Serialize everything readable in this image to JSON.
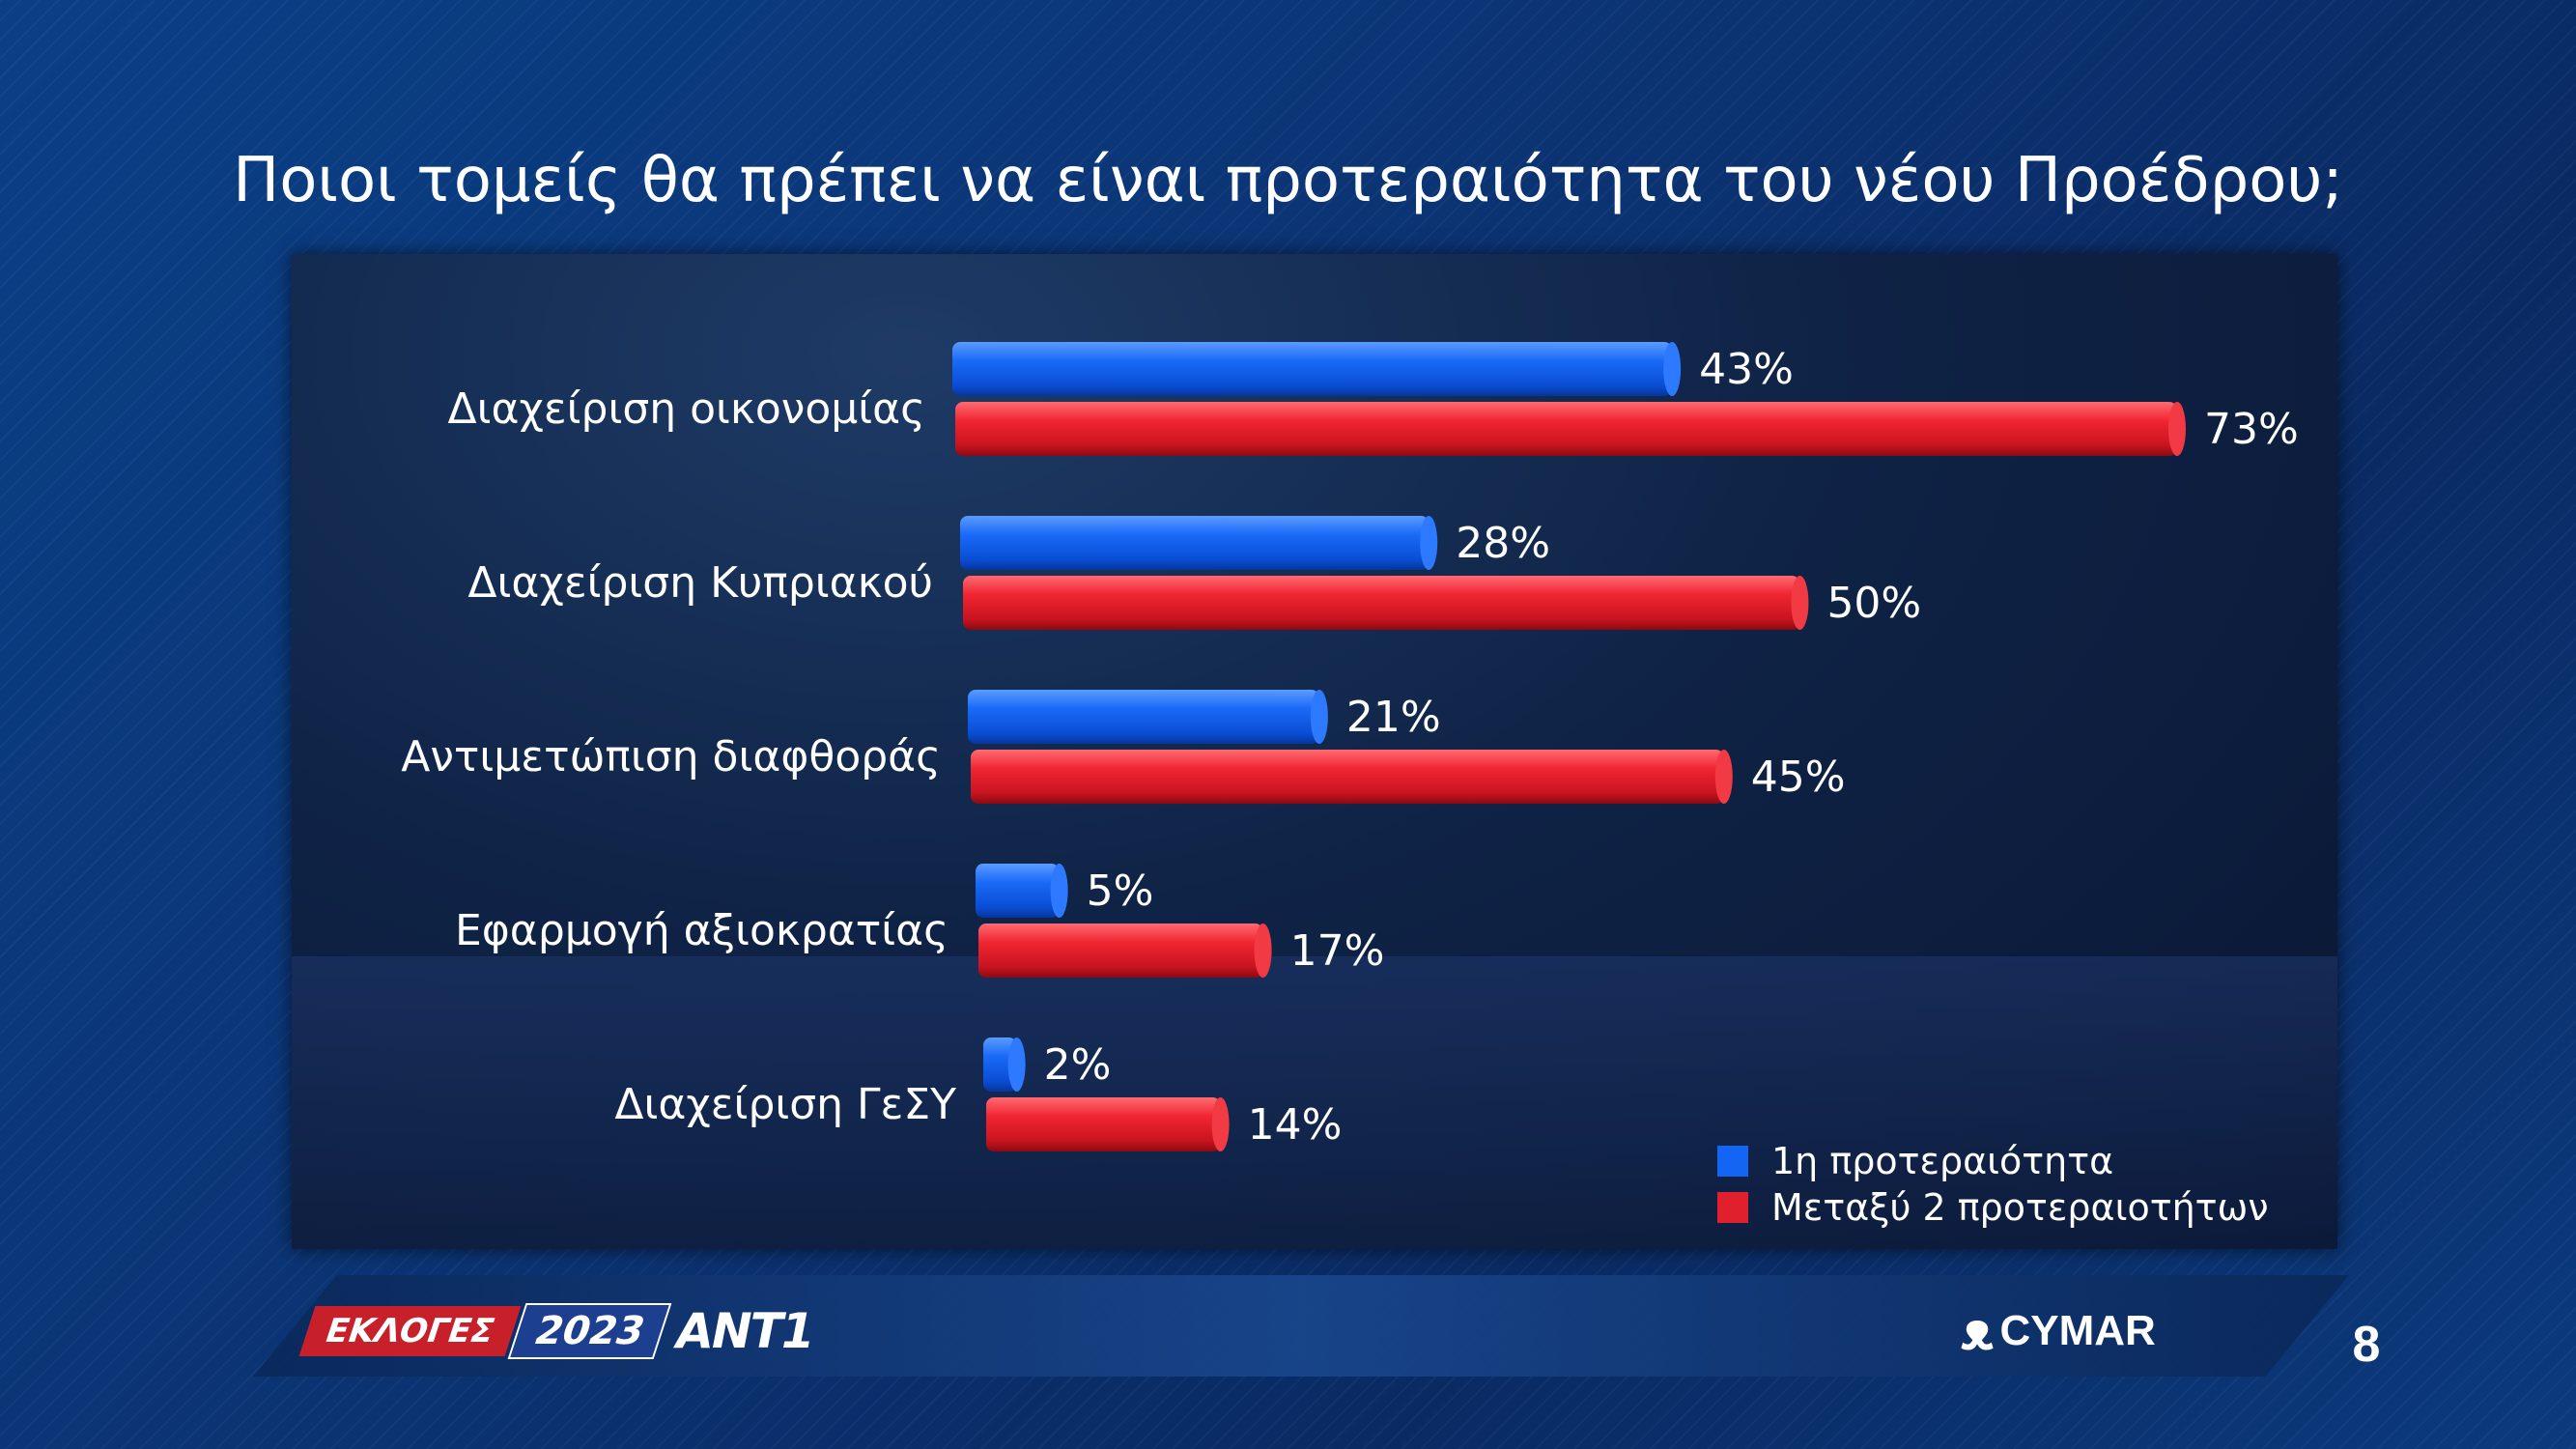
{
  "title": "Ποιοι τομείς θα πρέπει να είναι προτεραιότητα του νέου Προέδρου;",
  "chart_data": {
    "type": "bar",
    "orientation": "horizontal",
    "categories": [
      "Διαχείριση οικονομίας",
      "Διαχείριση Κυπριακού",
      "Αντιμετώπιση διαφθοράς",
      "Εφαρμογή αξιοκρατίας",
      "Διαχείριση ΓεΣΥ"
    ],
    "series": [
      {
        "name": "1η προτεραιότητα",
        "values": [
          43,
          28,
          21,
          5,
          2
        ],
        "labels": [
          "43%",
          "28%",
          "21%",
          "5%",
          "2%"
        ],
        "color": "#1565f5"
      },
      {
        "name": "Μεταξύ 2 προτεραιοτήτων",
        "values": [
          73,
          50,
          45,
          17,
          14
        ],
        "labels": [
          "73%",
          "50%",
          "45%",
          "17%",
          "14%"
        ],
        "color": "#e0202c"
      }
    ],
    "xlim": [
      0,
      73
    ],
    "legend_position": "bottom-right",
    "grid": false
  },
  "footer": {
    "elections_label": "ΕΚΛΟΓΕΣ",
    "year": "2023",
    "channel": "ANT1",
    "pollster": "CYMAR",
    "page_number": "8"
  }
}
